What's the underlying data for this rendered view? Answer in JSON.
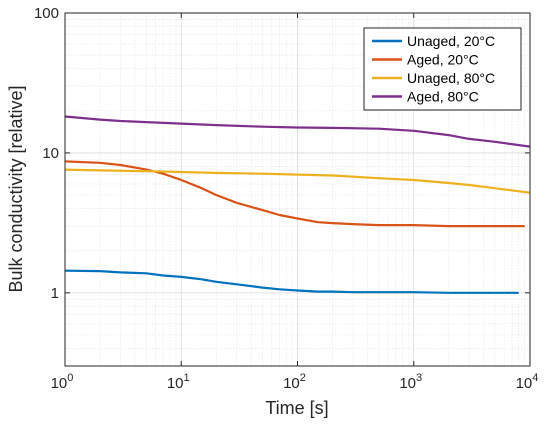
{
  "chart_data": {
    "type": "line",
    "xlabel": "Time [s]",
    "ylabel": "Bulk conductivity [relative]",
    "x_scale": "log",
    "y_scale": "log",
    "xlim": [
      1,
      10000
    ],
    "ylim": [
      0.3,
      100
    ],
    "x_tick_labels": [
      {
        "base": "10",
        "exp": "0"
      },
      {
        "base": "10",
        "exp": "1"
      },
      {
        "base": "10",
        "exp": "2"
      },
      {
        "base": "10",
        "exp": "3"
      },
      {
        "base": "10",
        "exp": "4"
      }
    ],
    "y_tick_labels": [
      "1",
      "10",
      "100"
    ],
    "grid": true,
    "minor_grid": true,
    "legend_position": "top-right",
    "series": [
      {
        "name": "Unaged, 20°C",
        "color": "#0072BD",
        "x": [
          1,
          2,
          3,
          5,
          7,
          10,
          15,
          20,
          30,
          50,
          70,
          100,
          150,
          200,
          300,
          500,
          700,
          1000,
          2000,
          3000,
          5000,
          8000
        ],
        "y": [
          1.44,
          1.43,
          1.4,
          1.38,
          1.33,
          1.3,
          1.25,
          1.2,
          1.15,
          1.09,
          1.06,
          1.04,
          1.02,
          1.02,
          1.01,
          1.01,
          1.01,
          1.01,
          1.0,
          1.0,
          1.0,
          1.0
        ]
      },
      {
        "name": "Aged, 20°C",
        "color": "#D95319",
        "x": [
          1,
          2,
          3,
          5,
          7,
          10,
          15,
          20,
          30,
          50,
          70,
          100,
          150,
          200,
          300,
          500,
          700,
          1000,
          2000,
          3000,
          5000,
          9000
        ],
        "y": [
          8.7,
          8.5,
          8.2,
          7.6,
          7.1,
          6.4,
          5.6,
          5.0,
          4.4,
          3.9,
          3.6,
          3.4,
          3.2,
          3.15,
          3.1,
          3.05,
          3.05,
          3.05,
          3.0,
          3.0,
          3.0,
          3.0
        ]
      },
      {
        "name": "Unaged, 80°C",
        "color": "#EDB120",
        "x": [
          1,
          2,
          5,
          10,
          20,
          50,
          100,
          200,
          500,
          1000,
          2000,
          3000,
          5000,
          10000
        ],
        "y": [
          7.6,
          7.5,
          7.4,
          7.3,
          7.2,
          7.1,
          7.0,
          6.9,
          6.6,
          6.4,
          6.1,
          5.9,
          5.6,
          5.2
        ]
      },
      {
        "name": "Aged, 80°C",
        "color": "#7E2F8E",
        "x": [
          1,
          2,
          3,
          5,
          10,
          20,
          50,
          100,
          200,
          500,
          1000,
          2000,
          3000,
          5000,
          10000
        ],
        "y": [
          18.2,
          17.3,
          16.9,
          16.6,
          16.2,
          15.8,
          15.4,
          15.2,
          15.1,
          14.9,
          14.4,
          13.4,
          12.6,
          12.0,
          11.1
        ]
      }
    ]
  }
}
